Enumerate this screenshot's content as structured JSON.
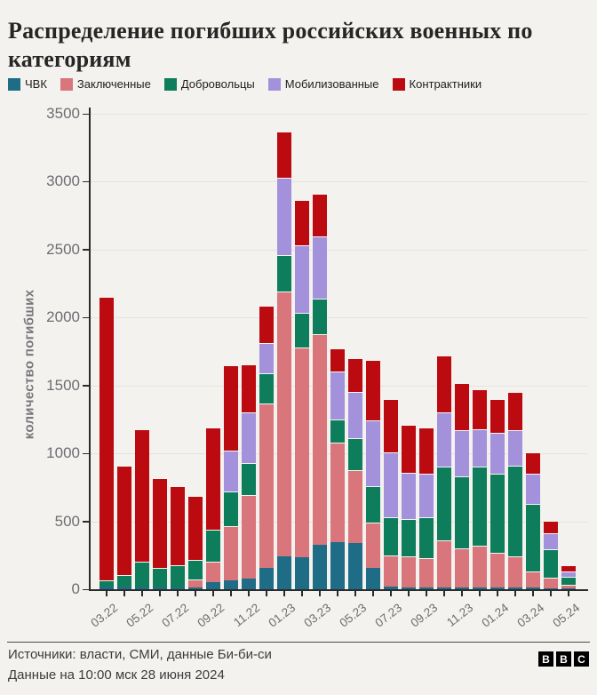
{
  "title": "Распределение погибших российских военных по категориям",
  "chart_data": {
    "type": "bar",
    "stacked": true,
    "title": "Распределение погибших российских военных по категориям",
    "xlabel": "",
    "ylabel": "количество погибших",
    "ylim": [
      0,
      3500
    ],
    "ytick_step": 500,
    "grid": true,
    "legend_position": "top",
    "xtick_label_every": 2,
    "categories": [
      "03.22",
      "04.22",
      "05.22",
      "06.22",
      "07.22",
      "08.22",
      "09.22",
      "10.22",
      "11.22",
      "12.22",
      "01.23",
      "02.23",
      "03.23",
      "04.23",
      "05.23",
      "06.23",
      "07.23",
      "08.23",
      "09.23",
      "10.23",
      "11.23",
      "12.23",
      "01.24",
      "02.24",
      "03.24",
      "04.24",
      "05.24"
    ],
    "series": [
      {
        "name": "ЧВК",
        "color": "#1e6c85",
        "values": [
          20,
          20,
          15,
          15,
          10,
          15,
          50,
          65,
          80,
          160,
          240,
          235,
          330,
          350,
          340,
          155,
          20,
          15,
          15,
          10,
          10,
          10,
          10,
          10,
          10,
          5,
          5
        ]
      },
      {
        "name": "Заключенные",
        "color": "#d8767c",
        "values": [
          0,
          0,
          0,
          0,
          0,
          55,
          155,
          400,
          615,
          1210,
          1950,
          1545,
          1550,
          730,
          540,
          335,
          230,
          225,
          215,
          350,
          290,
          310,
          260,
          230,
          120,
          80,
          25
        ]
      },
      {
        "name": "Добровольцы",
        "color": "#0d7d5c",
        "values": [
          45,
          85,
          190,
          145,
          165,
          145,
          235,
          255,
          235,
          220,
          270,
          255,
          260,
          170,
          230,
          270,
          280,
          280,
          300,
          540,
          530,
          580,
          580,
          670,
          500,
          210,
          60
        ]
      },
      {
        "name": "Мобилизованные",
        "color": "#a392db",
        "values": [
          0,
          0,
          0,
          0,
          0,
          0,
          0,
          300,
          375,
          220,
          570,
          495,
          460,
          350,
          340,
          480,
          480,
          340,
          320,
          400,
          340,
          280,
          300,
          260,
          220,
          120,
          40
        ]
      },
      {
        "name": "Контрактники",
        "color": "#bb0b10",
        "values": [
          2090,
          805,
          975,
          660,
          585,
          470,
          750,
          630,
          350,
          280,
          340,
          335,
          310,
          170,
          250,
          450,
          390,
          350,
          340,
          420,
          350,
          290,
          250,
          280,
          160,
          90,
          50
        ]
      }
    ]
  },
  "footer": {
    "source": "Источники: власти, СМИ, данные Би-би-си",
    "updated": "Данные на 10:00 мск 28 июня 2024",
    "logo_letters": [
      "B",
      "B",
      "C"
    ]
  },
  "colors": {
    "background": "#f4f2ee",
    "gridline": "#e5e3de",
    "axis": "#2b2b2b",
    "axis_text": "#6d6d72",
    "title_text": "#262626",
    "footer_text": "#3c3c3e"
  }
}
